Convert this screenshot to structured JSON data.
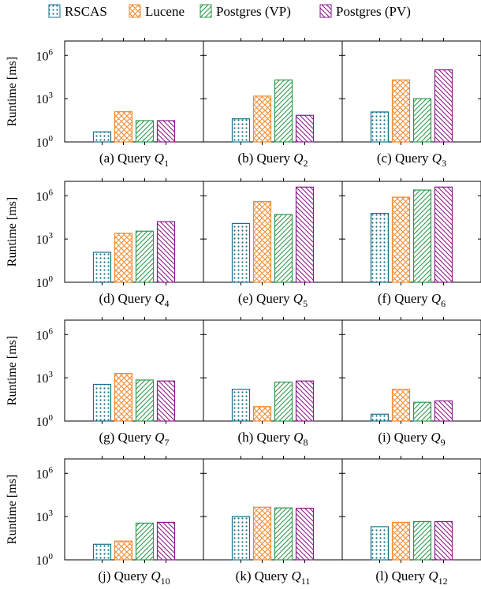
{
  "chart_data": {
    "type": "bar",
    "ylabel": "Runtime [ms]",
    "yscale": "log",
    "ylim": [
      1,
      10000000
    ],
    "yticks": [
      {
        "value": 1,
        "base": "10",
        "exp": "0"
      },
      {
        "value": 1000,
        "base": "10",
        "exp": "3"
      },
      {
        "value": 1000000,
        "base": "10",
        "exp": "6"
      }
    ],
    "legend_position": "top",
    "series": [
      {
        "name": "RSCAS",
        "color": "#1a6f8a",
        "pattern": "dots"
      },
      {
        "name": "Lucene",
        "color": "#f28a30",
        "pattern": "crosshatch"
      },
      {
        "name": "Postgres (VP)",
        "color": "#2a9a4a",
        "pattern": "north-east-lines"
      },
      {
        "name": "Postgres (PV)",
        "color": "#8b1a8b",
        "pattern": "north-west-lines"
      }
    ],
    "panels": [
      {
        "prefix": "(a) Query",
        "sub": "1",
        "values": [
          5,
          125,
          30,
          30
        ]
      },
      {
        "prefix": "(b) Query",
        "sub": "2",
        "values": [
          40,
          1500,
          20000,
          70
        ]
      },
      {
        "prefix": "(c) Query",
        "sub": "3",
        "values": [
          120,
          20000,
          1000,
          100000
        ]
      },
      {
        "prefix": "(d) Query",
        "sub": "4",
        "values": [
          120,
          2500,
          3500,
          16000
        ]
      },
      {
        "prefix": "(e) Query",
        "sub": "5",
        "values": [
          12000,
          400000,
          50000,
          4000000
        ]
      },
      {
        "prefix": "(f) Query",
        "sub": "6",
        "values": [
          60000,
          800000,
          2500000,
          4000000
        ]
      },
      {
        "prefix": "(g) Query",
        "sub": "7",
        "values": [
          350,
          2000,
          700,
          600
        ]
      },
      {
        "prefix": "(h) Query",
        "sub": "8",
        "values": [
          160,
          10,
          500,
          600
        ]
      },
      {
        "prefix": "(i) Query",
        "sub": "9",
        "values": [
          3,
          160,
          20,
          25
        ]
      },
      {
        "prefix": "(j) Query",
        "sub": "10",
        "values": [
          12,
          20,
          350,
          400
        ]
      },
      {
        "prefix": "(k) Query",
        "sub": "11",
        "values": [
          1000,
          4500,
          4000,
          3800
        ]
      },
      {
        "prefix": "(l) Query",
        "sub": "12",
        "values": [
          200,
          400,
          450,
          450
        ]
      }
    ]
  }
}
